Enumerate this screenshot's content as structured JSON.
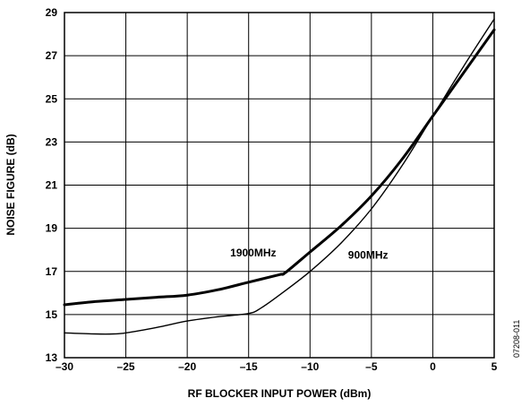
{
  "chart_data": {
    "type": "line",
    "xlabel": "RF BLOCKER INPUT POWER  (dBm)",
    "ylabel": "NOISE FIGURE (dB)",
    "xlim": [
      -30,
      5
    ],
    "ylim": [
      13,
      29
    ],
    "xticks": [
      -30,
      -25,
      -20,
      -15,
      -10,
      -5,
      0,
      5
    ],
    "xtick_labels": [
      "–30",
      "–25",
      "–20",
      "–15",
      "–10",
      "–5",
      "0",
      "5"
    ],
    "yticks": [
      13,
      15,
      17,
      19,
      21,
      23,
      25,
      27,
      29
    ],
    "ytick_labels": [
      "13",
      "15",
      "17",
      "19",
      "21",
      "23",
      "25",
      "27",
      "29"
    ],
    "grid": true,
    "legend": "none",
    "series": [
      {
        "name": "1900MHz",
        "style": "thick",
        "x": [
          -30,
          -27.5,
          -25,
          -22.5,
          -20,
          -17.5,
          -15,
          -12.5,
          -12,
          -10,
          -7.5,
          -5,
          -2.5,
          0,
          2.5,
          5
        ],
        "y": [
          15.45,
          15.6,
          15.7,
          15.8,
          15.9,
          16.15,
          16.5,
          16.85,
          16.95,
          17.9,
          19.1,
          20.5,
          22.2,
          24.2,
          26.2,
          28.2
        ]
      },
      {
        "name": "900MHz",
        "style": "thin",
        "x": [
          -30,
          -27.5,
          -26,
          -25,
          -22.5,
          -20,
          -17.5,
          -15,
          -14,
          -12.5,
          -10,
          -7.5,
          -5,
          -2.5,
          0,
          2.5,
          5
        ],
        "y": [
          14.15,
          14.1,
          14.1,
          14.15,
          14.4,
          14.7,
          14.9,
          15.05,
          15.3,
          15.9,
          17.0,
          18.3,
          19.9,
          21.9,
          24.2,
          26.5,
          28.7
        ]
      }
    ],
    "annotations": [
      {
        "text": "1900MHz",
        "x": -16.5,
        "y": 17.7
      },
      {
        "text": "900MHz",
        "x": -6.9,
        "y": 17.6
      }
    ],
    "figure_id": "07208-011"
  }
}
